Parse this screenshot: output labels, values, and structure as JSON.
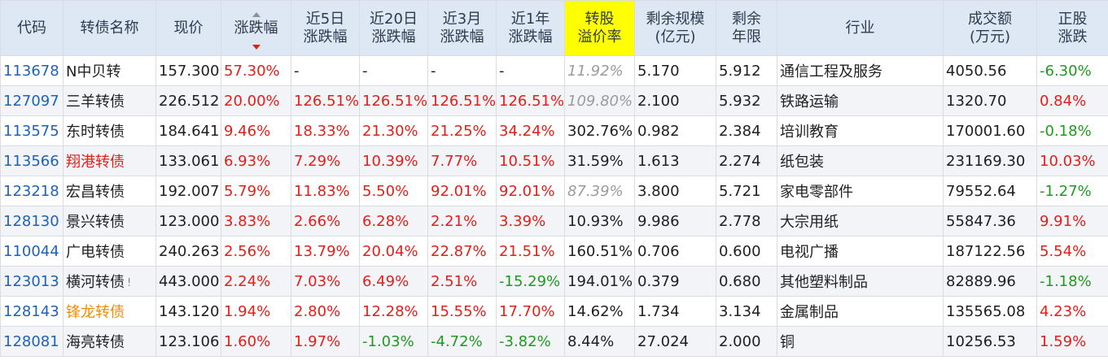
{
  "colors": {
    "header_bg": "#dde8f4",
    "highlight": "#ffff00",
    "up": "#e0201b",
    "down": "#1f9a1f",
    "code": "#1e62b8"
  },
  "headers": [
    {
      "line1": "代码",
      "line2": ""
    },
    {
      "line1": "转债名称",
      "line2": ""
    },
    {
      "line1": "现价",
      "line2": ""
    },
    {
      "line1": "涨跌幅",
      "line2": ""
    },
    {
      "line1": "近5日",
      "line2": "涨跌幅"
    },
    {
      "line1": "近20日",
      "line2": "涨跌幅"
    },
    {
      "line1": "近3月",
      "line2": "涨跌幅"
    },
    {
      "line1": "近1年",
      "line2": "涨跌幅"
    },
    {
      "line1": "转股",
      "line2": "溢价率"
    },
    {
      "line1": "剩余规模",
      "line2": "(亿元)"
    },
    {
      "line1": "剩余",
      "line2": "年限"
    },
    {
      "line1": "行业",
      "line2": ""
    },
    {
      "line1": "成交额",
      "line2": "(万元)"
    },
    {
      "line1": "正股",
      "line2": "涨跌"
    }
  ],
  "sort_icon": "sort-desc-icon",
  "rows": [
    {
      "code": "113678",
      "name": "N中贝转",
      "name_color": "plain",
      "flag": "",
      "price": "157.300",
      "chg": "57.30%",
      "chg_c": "red",
      "d5": "-",
      "d5_c": "black",
      "d20": "-",
      "d20_c": "black",
      "m3": "-",
      "m3_c": "black",
      "y1": "-",
      "y1_c": "black",
      "premium": "11.92%",
      "premium_c": "gray",
      "scale": "5.170",
      "years": "5.912",
      "industry": "通信工程及服务",
      "turnover": "4050.56",
      "stock": "-6.30%",
      "stock_c": "green"
    },
    {
      "code": "127097",
      "name": "三羊转债",
      "name_color": "plain",
      "flag": "",
      "price": "226.512",
      "chg": "20.00%",
      "chg_c": "red",
      "d5": "126.51%",
      "d5_c": "red",
      "d20": "126.51%",
      "d20_c": "red",
      "m3": "126.51%",
      "m3_c": "red",
      "y1": "126.51%",
      "y1_c": "red",
      "premium": "109.80%",
      "premium_c": "gray",
      "scale": "2.100",
      "years": "5.932",
      "industry": "铁路运输",
      "turnover": "1320.70",
      "stock": "0.84%",
      "stock_c": "red"
    },
    {
      "code": "113575",
      "name": "东时转债",
      "name_color": "plain",
      "flag": "",
      "price": "184.641",
      "chg": "9.46%",
      "chg_c": "red",
      "d5": "18.33%",
      "d5_c": "red",
      "d20": "21.30%",
      "d20_c": "red",
      "m3": "21.25%",
      "m3_c": "red",
      "y1": "34.24%",
      "y1_c": "red",
      "premium": "302.76%",
      "premium_c": "black",
      "scale": "0.982",
      "years": "2.384",
      "industry": "培训教育",
      "turnover": "170001.60",
      "stock": "-0.18%",
      "stock_c": "green"
    },
    {
      "code": "113566",
      "name": "翔港转债",
      "name_color": "red",
      "flag": "",
      "price": "133.061",
      "chg": "6.93%",
      "chg_c": "red",
      "d5": "7.29%",
      "d5_c": "red",
      "d20": "10.39%",
      "d20_c": "red",
      "m3": "7.77%",
      "m3_c": "red",
      "y1": "10.51%",
      "y1_c": "red",
      "premium": "31.59%",
      "premium_c": "black",
      "scale": "1.613",
      "years": "2.274",
      "industry": "纸包装",
      "turnover": "231169.30",
      "stock": "10.03%",
      "stock_c": "red"
    },
    {
      "code": "123218",
      "name": "宏昌转债",
      "name_color": "plain",
      "flag": "",
      "price": "192.007",
      "chg": "5.79%",
      "chg_c": "red",
      "d5": "11.83%",
      "d5_c": "red",
      "d20": "5.50%",
      "d20_c": "red",
      "m3": "92.01%",
      "m3_c": "red",
      "y1": "92.01%",
      "y1_c": "red",
      "premium": "87.39%",
      "premium_c": "gray",
      "scale": "3.800",
      "years": "5.721",
      "industry": "家电零部件",
      "turnover": "79552.64",
      "stock": "-1.27%",
      "stock_c": "green"
    },
    {
      "code": "128130",
      "name": "景兴转债",
      "name_color": "plain",
      "flag": "",
      "price": "123.000",
      "chg": "3.83%",
      "chg_c": "red",
      "d5": "2.66%",
      "d5_c": "red",
      "d20": "6.28%",
      "d20_c": "red",
      "m3": "2.21%",
      "m3_c": "red",
      "y1": "3.39%",
      "y1_c": "red",
      "premium": "10.93%",
      "premium_c": "black",
      "scale": "9.986",
      "years": "2.778",
      "industry": "大宗用纸",
      "turnover": "55847.36",
      "stock": "9.91%",
      "stock_c": "red"
    },
    {
      "code": "110044",
      "name": "广电转债",
      "name_color": "plain",
      "flag": "",
      "price": "240.263",
      "chg": "2.56%",
      "chg_c": "red",
      "d5": "13.79%",
      "d5_c": "red",
      "d20": "20.04%",
      "d20_c": "red",
      "m3": "22.87%",
      "m3_c": "red",
      "y1": "21.51%",
      "y1_c": "red",
      "premium": "160.51%",
      "premium_c": "black",
      "scale": "0.706",
      "years": "0.600",
      "industry": "电视广播",
      "turnover": "187122.56",
      "stock": "5.54%",
      "stock_c": "red"
    },
    {
      "code": "123013",
      "name": "横河转债",
      "name_color": "plain",
      "flag": "!",
      "price": "443.000",
      "chg": "2.24%",
      "chg_c": "red",
      "d5": "7.03%",
      "d5_c": "red",
      "d20": "6.49%",
      "d20_c": "red",
      "m3": "2.51%",
      "m3_c": "red",
      "y1": "-15.29%",
      "y1_c": "green",
      "premium": "194.01%",
      "premium_c": "black",
      "scale": "0.379",
      "years": "0.680",
      "industry": "其他塑料制品",
      "turnover": "82889.96",
      "stock": "-1.18%",
      "stock_c": "green"
    },
    {
      "code": "128143",
      "name": "锋龙转债",
      "name_color": "orange",
      "flag": "",
      "price": "143.120",
      "chg": "1.94%",
      "chg_c": "red",
      "d5": "2.80%",
      "d5_c": "red",
      "d20": "12.28%",
      "d20_c": "red",
      "m3": "15.55%",
      "m3_c": "red",
      "y1": "17.70%",
      "y1_c": "red",
      "premium": "14.62%",
      "premium_c": "black",
      "scale": "1.734",
      "years": "3.134",
      "industry": "金属制品",
      "turnover": "135565.08",
      "stock": "4.23%",
      "stock_c": "red"
    },
    {
      "code": "128081",
      "name": "海亮转债",
      "name_color": "plain",
      "flag": "",
      "price": "123.106",
      "chg": "1.60%",
      "chg_c": "red",
      "d5": "1.97%",
      "d5_c": "red",
      "d20": "-1.03%",
      "d20_c": "green",
      "m3": "-4.72%",
      "m3_c": "green",
      "y1": "-3.82%",
      "y1_c": "green",
      "premium": "8.44%",
      "premium_c": "black",
      "scale": "27.024",
      "years": "2.000",
      "industry": "铜",
      "turnover": "10256.53",
      "stock": "1.59%",
      "stock_c": "red"
    }
  ]
}
